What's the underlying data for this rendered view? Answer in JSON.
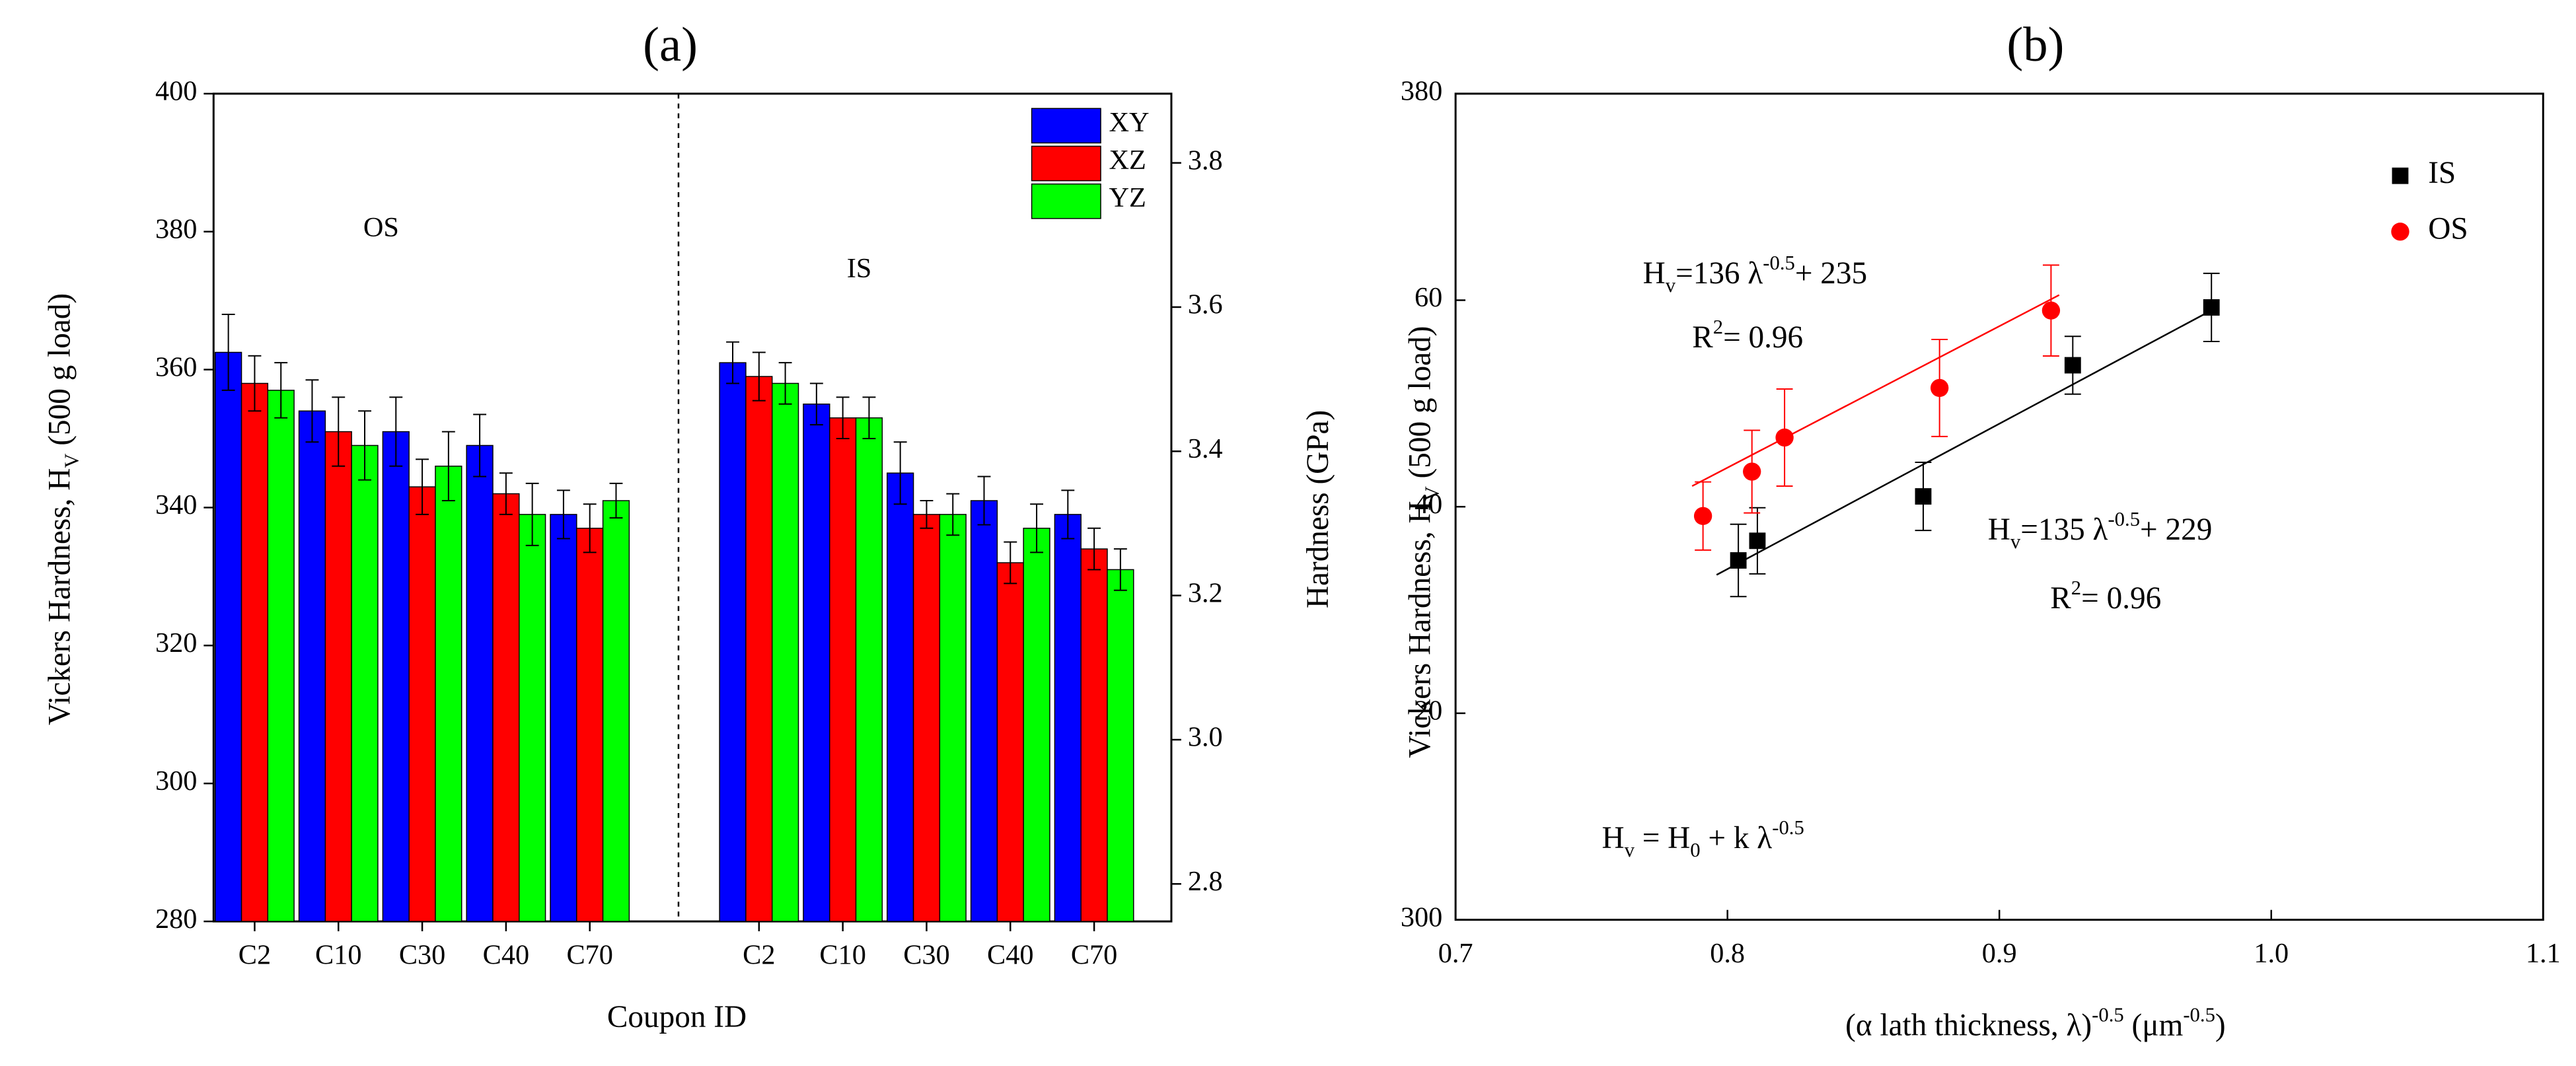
{
  "chart_data": [
    {
      "type": "bar",
      "title": "(a)",
      "ylabel": {
        "parts": [
          "Vickers Hardness, H",
          "V",
          " (500 g load)"
        ],
        "scripts": [
          "base",
          "sub",
          "base"
        ]
      },
      "y2label": "Hardness (GPa)",
      "xlabel": "Coupon ID",
      "groups": [
        "OS",
        "IS"
      ],
      "categories": [
        "C2",
        "C10",
        "C30",
        "C40",
        "C70",
        "C2",
        "C10",
        "C30",
        "C40",
        "C70"
      ],
      "series": [
        {
          "name": "XY",
          "color": "#0000ff",
          "values": [
            362.5,
            354,
            351,
            349,
            339,
            361,
            355,
            345,
            341,
            339
          ],
          "errors": [
            5.5,
            4.5,
            5,
            4.5,
            3.5,
            3,
            3,
            4.5,
            3.5,
            3.5
          ]
        },
        {
          "name": "XZ",
          "color": "#ff0000",
          "values": [
            358,
            351,
            343,
            342,
            337,
            359,
            353,
            339,
            332,
            334
          ],
          "errors": [
            4,
            5,
            4,
            3,
            3.5,
            3.5,
            3,
            2,
            3,
            3
          ]
        },
        {
          "name": "YZ",
          "color": "#00ff00",
          "values": [
            357,
            349,
            346,
            339,
            341,
            358,
            353,
            339,
            337,
            331
          ],
          "errors": [
            4,
            5,
            5,
            4.5,
            2.5,
            3,
            3,
            3,
            3.5,
            3
          ]
        }
      ],
      "ylim": [
        280,
        400
      ],
      "yticks": [
        280,
        300,
        320,
        340,
        360,
        380,
        400
      ],
      "y2lim": [
        2.748,
        3.896
      ],
      "y2ticks": [
        2.8,
        {
          "value": 3,
          "label": "3.0"
        },
        3.2,
        3.4,
        3.6,
        3.8
      ],
      "legend": "upper right"
    },
    {
      "type": "scatter",
      "title": "(b)",
      "ylabel": {
        "parts": [
          "Vickers Hardness, H",
          "V",
          " (500 g load)"
        ],
        "scripts": [
          "base",
          "sub",
          "base"
        ]
      },
      "xlabel": {
        "parts": [
          "(α lath thickness, λ)",
          "-0.5",
          " (μm",
          "-0.5",
          ")"
        ],
        "scripts": [
          "base",
          "sup",
          "base",
          "sup",
          "base"
        ]
      },
      "series": [
        {
          "name": "IS",
          "color": "#000000",
          "marker": "square",
          "x": [
            0.804,
            0.811,
            0.872,
            0.927,
            0.978
          ],
          "values": [
            334.8,
            336.7,
            341,
            353.7,
            359.3
          ],
          "errors": [
            3.5,
            3.2,
            3.3,
            2.8,
            3.3
          ],
          "fit_x": [
            0.796,
            0.98
          ],
          "fit_y": [
            333.4,
            359.3
          ]
        },
        {
          "name": "OS",
          "color": "#ff0000",
          "marker": "circle",
          "x": [
            0.791,
            0.809,
            0.821,
            0.878,
            0.919
          ],
          "values": [
            339.1,
            343.4,
            346.7,
            351.5,
            359
          ],
          "errors": [
            3.3,
            4,
            4.7,
            4.7,
            4.4
          ],
          "fit_x": [
            0.787,
            0.922
          ],
          "fit_y": [
            342,
            360.5
          ]
        }
      ],
      "annotations": [
        {
          "parts": [
            "H",
            "v",
            "=136 λ",
            "-0.5",
            "+ 235"
          ],
          "scripts": [
            "base",
            "sub",
            "base",
            "sup",
            "base"
          ],
          "color": "#ff0000"
        },
        {
          "parts": [
            "R",
            "2",
            "= 0.96"
          ],
          "scripts": [
            "base",
            "sup",
            "base"
          ],
          "color": "#ff0000"
        },
        {
          "parts": [
            "H",
            "v",
            "=135 λ",
            "-0.5",
            "+ 229"
          ],
          "scripts": [
            "base",
            "sub",
            "base",
            "sup",
            "base"
          ],
          "color": "#000000"
        },
        {
          "parts": [
            "R",
            "2",
            "= 0.96"
          ],
          "scripts": [
            "base",
            "sup",
            "base"
          ],
          "color": "#000000"
        },
        {
          "parts": [
            "H",
            "v",
            " = H",
            "0",
            " + k λ",
            "-0.5"
          ],
          "scripts": [
            "base",
            "sub",
            "base",
            "sub",
            "base",
            "sup"
          ],
          "color": "#000000"
        }
      ],
      "xlim": [
        0.7,
        1.1
      ],
      "xticks": [
        0.7,
        0.8,
        0.9,
        {
          "value": 1,
          "label": "1.0"
        },
        1.1
      ],
      "ylim": [
        300,
        380
      ],
      "yticks": [
        300,
        {
          "value": 320,
          "label": "20"
        },
        {
          "value": 340,
          "label": "40"
        },
        {
          "value": 360,
          "label": "60"
        },
        380
      ],
      "legend": "upper right"
    }
  ]
}
